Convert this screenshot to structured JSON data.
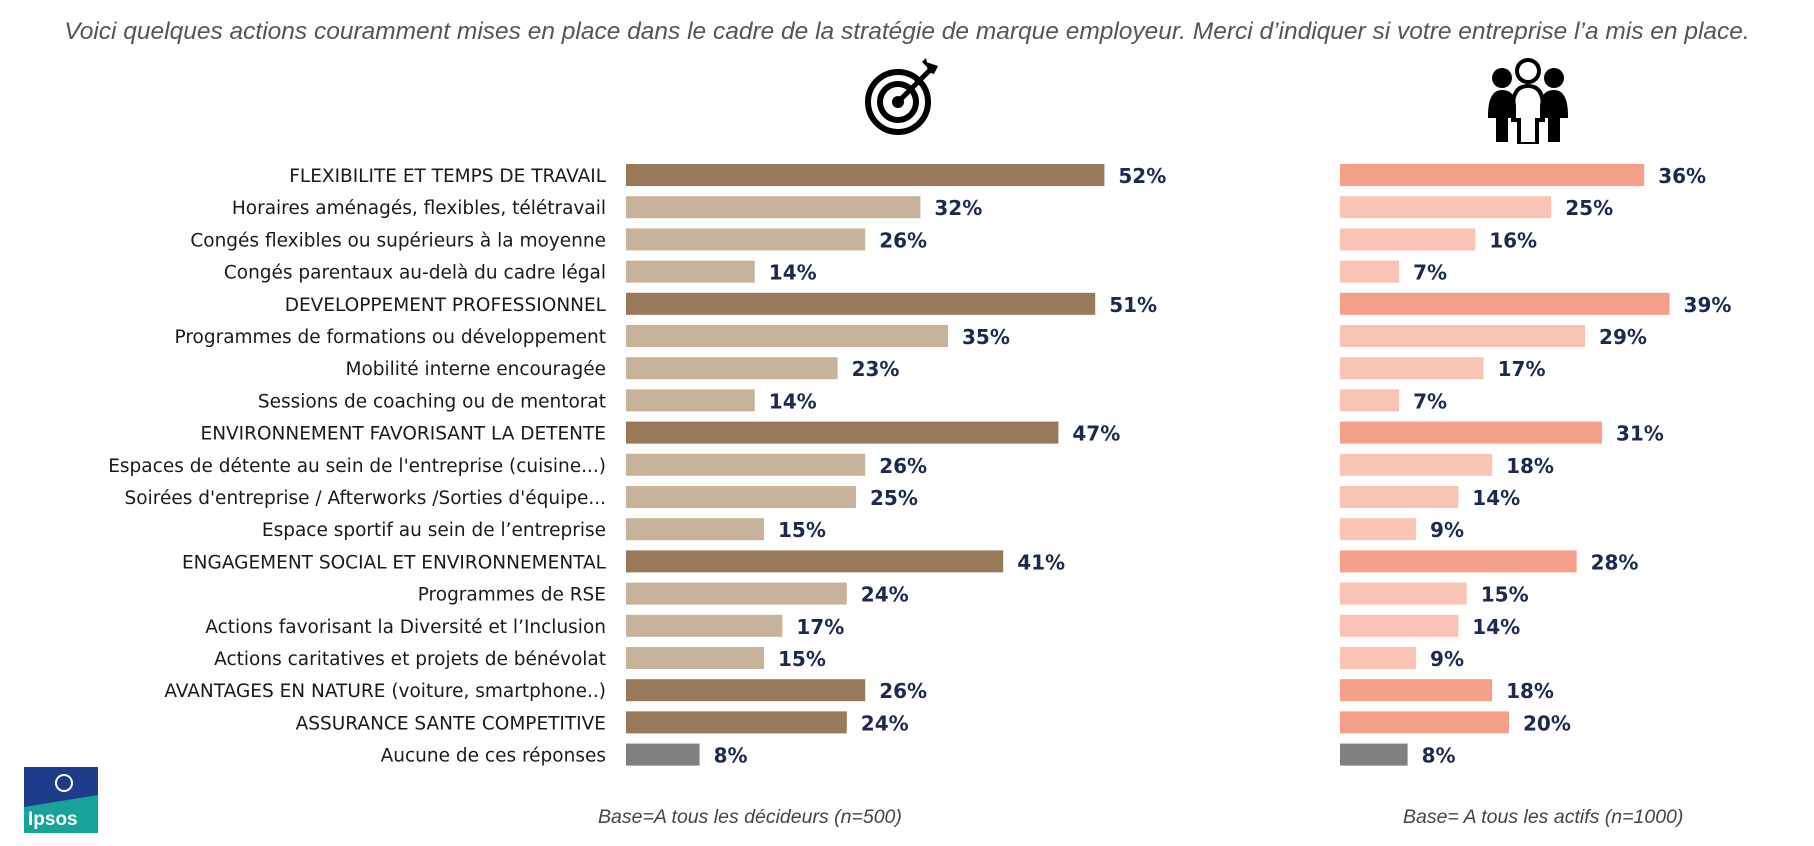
{
  "title": "Voici quelques actions couramment mises en place dans le cadre de la stratégie de marque employeur. Merci d’indiquer si votre entreprise l’a mis en place.",
  "chart_data": {
    "type": "bar",
    "orientation": "horizontal",
    "categories": [
      "FLEXIBILITE ET TEMPS DE TRAVAIL",
      "Horaires aménagés, flexibles, télétravail",
      "Congés flexibles ou supérieurs à la moyenne",
      "Congés parentaux au-delà du cadre légal",
      "DEVELOPPEMENT PROFESSIONNEL",
      "Programmes de formations ou  développement",
      "Mobilité interne encouragée",
      "Sessions de coaching ou de mentorat",
      "ENVIRONNEMENT FAVORISANT LA DETENTE",
      "Espaces de détente au sein de l'entreprise (cuisine...)",
      "Soirées d'entreprise / Afterworks /Sorties d'équipe...",
      "Espace sportif au sein de l’entreprise",
      "ENGAGEMENT SOCIAL ET ENVIRONNEMENTAL",
      "Programmes de RSE",
      "Actions favorisant la Diversité et l’Inclusion",
      "Actions caritatives et projets de bénévolat",
      "AVANTAGES EN NATURE (voiture, smartphone..)",
      "ASSURANCE SANTE COMPETITIVE",
      "Aucune de ces réponses"
    ],
    "row_kind": [
      "header",
      "item",
      "item",
      "item",
      "header",
      "item",
      "item",
      "item",
      "header",
      "item",
      "item",
      "item",
      "header",
      "item",
      "item",
      "item",
      "header",
      "header",
      "none"
    ],
    "series": [
      {
        "values": [
          52,
          32,
          26,
          14,
          51,
          35,
          23,
          14,
          47,
          26,
          25,
          15,
          41,
          24,
          17,
          15,
          26,
          24,
          8
        ],
        "base_note": "Base=A tous les décideurs  (n=500)",
        "colors": {
          "header": "#98795a",
          "item": "#c7b29c",
          "none": "#808080"
        }
      },
      {
        "values": [
          36,
          25,
          16,
          7,
          39,
          29,
          17,
          7,
          31,
          18,
          14,
          9,
          28,
          15,
          14,
          9,
          18,
          20,
          8
        ],
        "base_note": "Base= A tous les actifs  (n=1000)",
        "colors": {
          "header": "#f4a08a",
          "item": "#f9c3b5",
          "none": "#808080"
        }
      }
    ],
    "value_suffix": "%",
    "series_icons": [
      "target-icon",
      "people-group-icon"
    ]
  },
  "logo": {
    "text": "Ipsos",
    "colors": {
      "top": "#1e3c8c",
      "bottom": "#17a399"
    }
  }
}
